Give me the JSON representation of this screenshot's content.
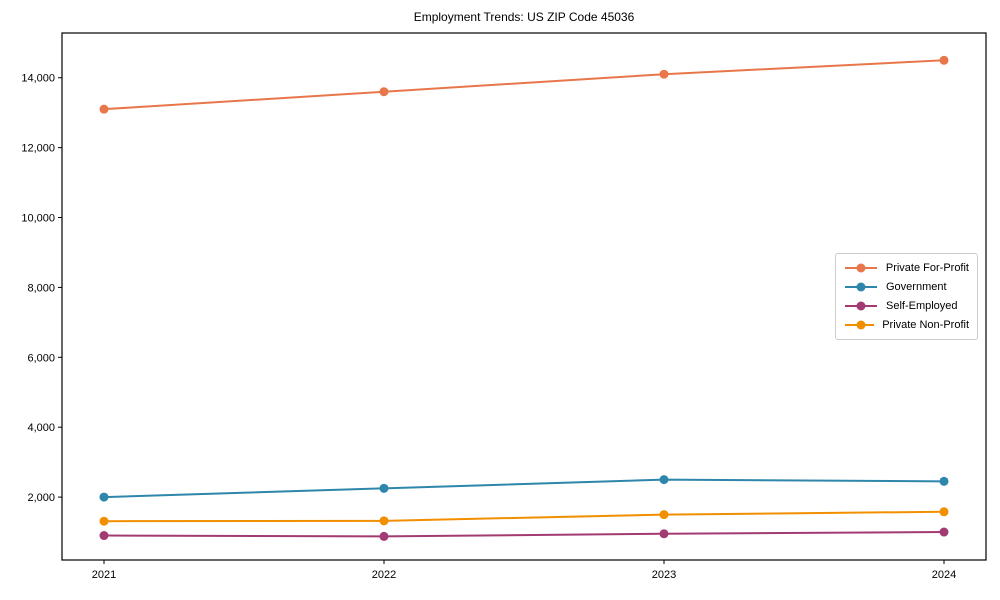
{
  "chart": {
    "title": "Employment Trends: US ZIP Code 45036"
  },
  "chart_data": {
    "type": "line",
    "title": "Employment Trends: US ZIP Code 45036",
    "xlabel": "",
    "ylabel": "",
    "x": [
      2021,
      2022,
      2023,
      2024
    ],
    "x_tick_labels": [
      "2021",
      "2022",
      "2023",
      "2024"
    ],
    "series": [
      {
        "name": "Private For-Profit",
        "color": "#E8764A",
        "values": [
          13100,
          13600,
          14100,
          14500
        ]
      },
      {
        "name": "Government",
        "color": "#2E86AB",
        "values": [
          2000,
          2250,
          2500,
          2450
        ]
      },
      {
        "name": "Self-Employed",
        "color": "#A23B72",
        "values": [
          900,
          875,
          950,
          1000
        ]
      },
      {
        "name": "Private Non-Profit",
        "color": "#F18F01",
        "values": [
          1310,
          1320,
          1500,
          1580
        ]
      }
    ],
    "xlim": [
      2020.85,
      2024.15
    ],
    "ylim": [
      200,
      15280
    ],
    "yticks": [
      2000,
      4000,
      6000,
      8000,
      10000,
      12000,
      14000
    ],
    "ytick_labels": [
      "2,000",
      "4,000",
      "6,000",
      "8,000",
      "10,000",
      "12,000",
      "14,000"
    ],
    "grid": false,
    "legend_position": "right-middle",
    "marker": "circle",
    "axis_color": "#000000",
    "background_color": "#ffffff"
  }
}
